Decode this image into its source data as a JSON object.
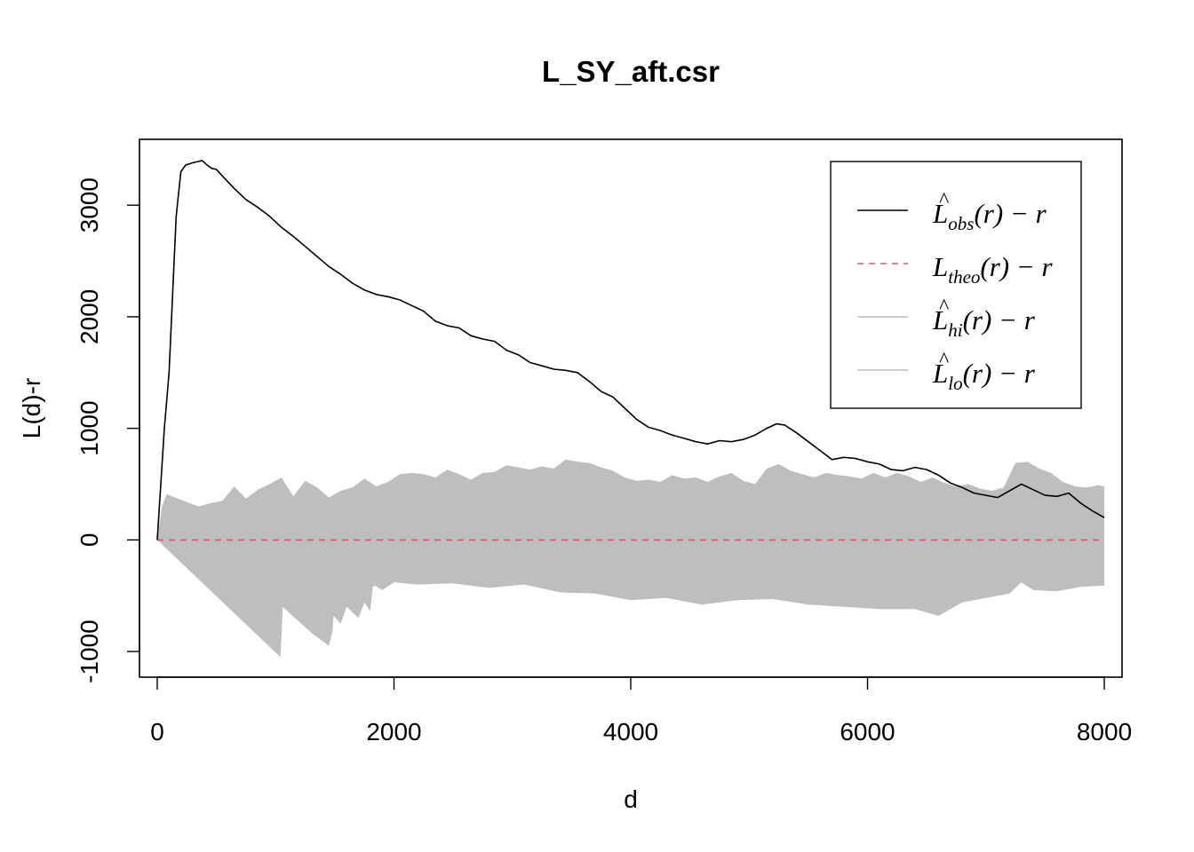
{
  "chart_data": {
    "type": "line",
    "title": "L_SY_aft.csr",
    "xlabel": "d",
    "ylabel": "L(d)-r",
    "xlim": [
      -150,
      8150
    ],
    "ylim": [
      -1230,
      3590
    ],
    "xticks": [
      0,
      2000,
      4000,
      6000,
      8000
    ],
    "xtick_labels": [
      "0",
      "2000",
      "4000",
      "6000",
      "8000"
    ],
    "yticks": [
      -1000,
      0,
      1000,
      2000,
      3000
    ],
    "ytick_labels": [
      "-1000",
      "0",
      "1000",
      "2000",
      "3000"
    ],
    "grid": false,
    "legend_position": "top-right",
    "colors": {
      "obs": "#000000",
      "theo": "#DF536B",
      "envelope": "#BEBEBE"
    },
    "series": [
      {
        "name": "obs",
        "legend_label": {
          "base": "L",
          "hat": "^",
          "sub": "obs",
          "expr": "(r) − r"
        },
        "style": "solid",
        "x": [
          0,
          30,
          60,
          100,
          130,
          160,
          200,
          240,
          270,
          300,
          340,
          380,
          420,
          460,
          500,
          560,
          650,
          750,
          850,
          950,
          1050,
          1150,
          1250,
          1350,
          1450,
          1550,
          1650,
          1750,
          1850,
          1950,
          2050,
          2150,
          2250,
          2350,
          2450,
          2550,
          2650,
          2750,
          2850,
          2950,
          3050,
          3150,
          3250,
          3350,
          3450,
          3550,
          3650,
          3750,
          3850,
          3950,
          4050,
          4150,
          4250,
          4350,
          4450,
          4550,
          4650,
          4750,
          4850,
          4950,
          5050,
          5150,
          5230,
          5300,
          5400,
          5500,
          5600,
          5700,
          5800,
          5900,
          6000,
          6100,
          6200,
          6300,
          6400,
          6500,
          6600,
          6700,
          6800,
          6900,
          7000,
          7100,
          7200,
          7300,
          7400,
          7500,
          7600,
          7700,
          7800,
          7900,
          8000
        ],
        "y": [
          0,
          500,
          1000,
          1500,
          2200,
          2900,
          3300,
          3360,
          3370,
          3380,
          3390,
          3400,
          3360,
          3330,
          3320,
          3250,
          3150,
          3050,
          2980,
          2900,
          2800,
          2720,
          2630,
          2540,
          2450,
          2380,
          2300,
          2240,
          2200,
          2180,
          2150,
          2100,
          2050,
          1960,
          1920,
          1900,
          1830,
          1800,
          1780,
          1700,
          1660,
          1590,
          1560,
          1530,
          1520,
          1500,
          1420,
          1330,
          1280,
          1180,
          1080,
          1010,
          980,
          940,
          910,
          880,
          860,
          890,
          880,
          900,
          940,
          1000,
          1040,
          1030,
          960,
          880,
          800,
          720,
          740,
          730,
          700,
          680,
          630,
          620,
          650,
          630,
          580,
          510,
          470,
          420,
          400,
          380,
          440,
          500,
          450,
          400,
          390,
          420,
          330,
          260,
          200
        ]
      },
      {
        "name": "theo",
        "legend_label": {
          "base": "L",
          "hat": "",
          "sub": "theo",
          "expr": "(r) − r"
        },
        "style": "dashed",
        "x": [
          0,
          8000
        ],
        "y": [
          0,
          0
        ]
      },
      {
        "name": "hi",
        "legend_label": {
          "base": "L",
          "hat": "^",
          "sub": "hi",
          "expr": "(r) − r"
        },
        "style": "band-upper",
        "x": [
          0,
          40,
          80,
          150,
          250,
          350,
          450,
          550,
          650,
          750,
          850,
          950,
          1050,
          1150,
          1250,
          1350,
          1450,
          1550,
          1650,
          1750,
          1850,
          1950,
          2050,
          2150,
          2250,
          2350,
          2450,
          2550,
          2650,
          2750,
          2850,
          2950,
          3050,
          3150,
          3250,
          3350,
          3450,
          3550,
          3650,
          3750,
          3850,
          3950,
          4050,
          4150,
          4250,
          4350,
          4450,
          4550,
          4650,
          4750,
          4850,
          4950,
          5050,
          5150,
          5250,
          5350,
          5450,
          5550,
          5650,
          5750,
          5850,
          5950,
          6050,
          6150,
          6250,
          6350,
          6450,
          6550,
          6650,
          6750,
          6850,
          6950,
          7050,
          7150,
          7250,
          7350,
          7450,
          7550,
          7650,
          7750,
          7850,
          7950,
          8000
        ],
        "y": [
          0,
          300,
          410,
          380,
          340,
          300,
          330,
          350,
          480,
          370,
          450,
          500,
          560,
          390,
          530,
          470,
          380,
          440,
          470,
          550,
          480,
          520,
          590,
          600,
          590,
          560,
          630,
          590,
          540,
          600,
          610,
          670,
          650,
          630,
          660,
          640,
          720,
          700,
          690,
          650,
          620,
          560,
          530,
          540,
          520,
          580,
          550,
          560,
          520,
          570,
          600,
          530,
          500,
          640,
          680,
          620,
          590,
          560,
          600,
          580,
          570,
          550,
          600,
          560,
          600,
          570,
          520,
          560,
          510,
          480,
          500,
          460,
          440,
          470,
          690,
          700,
          640,
          600,
          520,
          480,
          470,
          490,
          480
        ]
      },
      {
        "name": "lo",
        "legend_label": {
          "base": "L",
          "hat": "^",
          "sub": "lo",
          "expr": "(r) − r"
        },
        "style": "band-lower",
        "x": [
          0,
          1040,
          1050,
          1060,
          1300,
          1450,
          1480,
          1490,
          1550,
          1600,
          1700,
          1750,
          1800,
          1820,
          1840,
          1900,
          2000,
          2200,
          2500,
          2800,
          3100,
          3400,
          3700,
          4000,
          4300,
          4600,
          4900,
          5200,
          5500,
          5800,
          6100,
          6400,
          6600,
          6800,
          7000,
          7200,
          7300,
          7400,
          7600,
          7800,
          8000
        ],
        "y": [
          0,
          -1050,
          -850,
          -600,
          -830,
          -950,
          -820,
          -680,
          -750,
          -600,
          -700,
          -560,
          -640,
          -420,
          -410,
          -450,
          -380,
          -400,
          -390,
          -430,
          -400,
          -470,
          -480,
          -540,
          -520,
          -580,
          -540,
          -530,
          -580,
          -600,
          -620,
          -620,
          -680,
          -560,
          -520,
          -480,
          -380,
          -450,
          -460,
          -420,
          -410
        ]
      }
    ]
  }
}
